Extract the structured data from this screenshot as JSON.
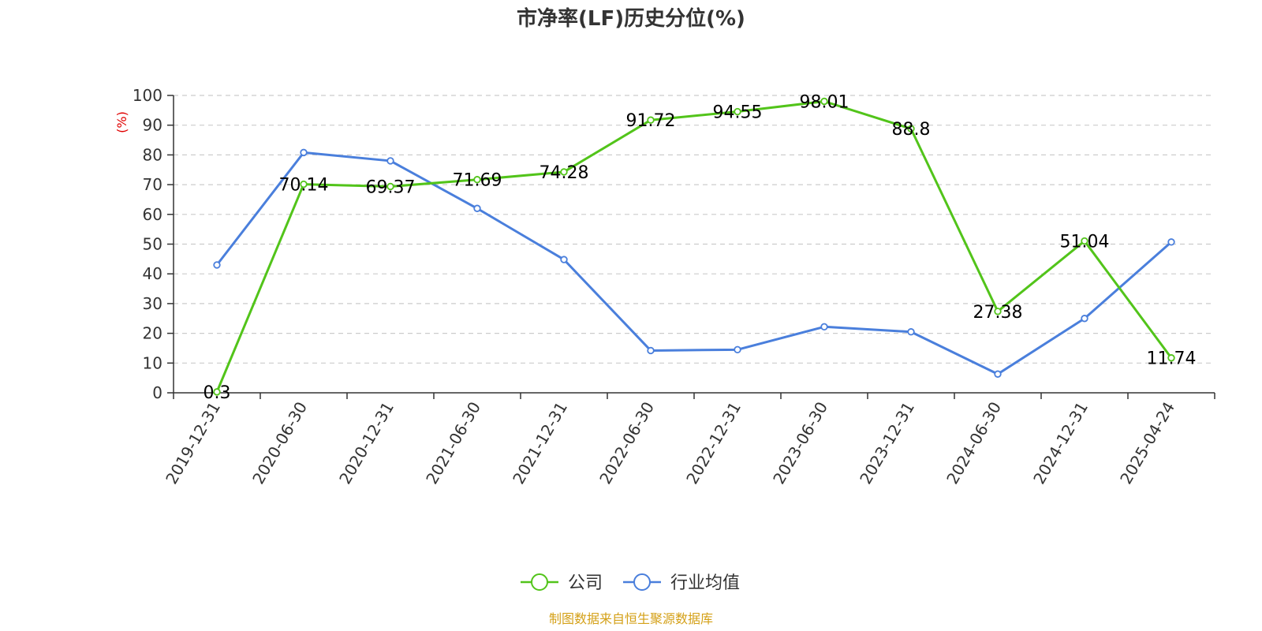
{
  "chart_data": {
    "type": "line",
    "title": "市净率(LF)历史分位(%)",
    "ylabel": "(%)",
    "xlabel": "",
    "ylim": [
      0,
      100
    ],
    "yticks": [
      0,
      10,
      20,
      30,
      40,
      50,
      60,
      70,
      80,
      90,
      100
    ],
    "categories": [
      "2019-12-31",
      "2020-06-30",
      "2020-12-31",
      "2021-06-30",
      "2021-12-31",
      "2022-06-30",
      "2022-12-31",
      "2023-06-30",
      "2023-12-31",
      "2024-06-30",
      "2024-12-31",
      "2025-04-24"
    ],
    "grid": true,
    "legend_position": "bottom-center",
    "series": [
      {
        "name": "公司",
        "color": "#52c41a",
        "values": [
          0.3,
          70.14,
          69.37,
          71.69,
          74.28,
          91.72,
          94.55,
          98.01,
          88.8,
          27.38,
          51.04,
          11.74
        ],
        "show_labels": true
      },
      {
        "name": "行业均值",
        "color": "#4a7fdc",
        "values": [
          43,
          80.8,
          78,
          62,
          44.8,
          14.2,
          14.5,
          22.2,
          20.5,
          6.3,
          25,
          50.7
        ],
        "show_labels": false
      }
    ],
    "source": "制图数据来自恒生聚源数据库"
  }
}
